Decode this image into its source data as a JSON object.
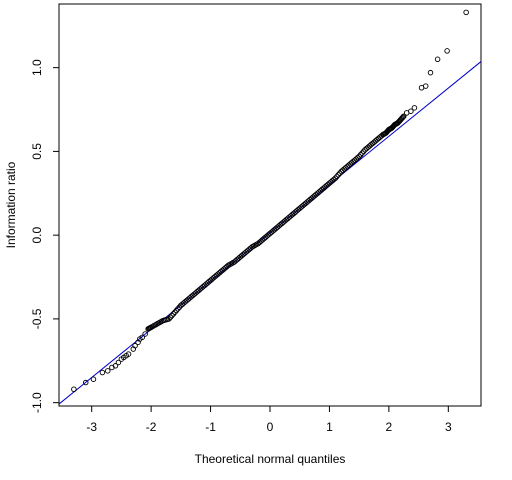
{
  "chart_data": {
    "type": "scatter",
    "title": "",
    "xlabel": "Theoretical normal quantiles",
    "ylabel": "Information ratio",
    "xlim": [
      -3.55,
      3.55
    ],
    "ylim": [
      -1.02,
      1.38
    ],
    "x_ticks": [
      -3,
      -2,
      -1,
      0,
      1,
      2,
      3
    ],
    "y_ticks": [
      -1.0,
      -0.5,
      0.0,
      0.5,
      1.0
    ],
    "x_tick_labels": [
      "-3",
      "-2",
      "-1",
      "0",
      "1",
      "2",
      "3"
    ],
    "y_tick_labels": [
      "-1.0",
      "-0.5",
      "0.0",
      "0.5",
      "1.0"
    ],
    "grid": false,
    "legend": "none",
    "point_color": "#000000",
    "reference_line": {
      "color": "#0000cc",
      "slope": 0.288,
      "intercept": 0.014
    },
    "points": {
      "x": [
        -3.3,
        -3.1,
        -2.97,
        -2.82,
        -2.73,
        -2.66,
        -2.6,
        -2.55,
        -2.5,
        -2.46,
        -2.42,
        -2.38,
        -2.3,
        -2.27,
        -2.22,
        -2.19,
        -2.15,
        -2.1,
        -2.05,
        -2.0,
        -1.9,
        -1.8,
        -1.7,
        -1.6,
        -1.5,
        -1.4,
        -1.3,
        -1.2,
        -1.1,
        -1.0,
        -0.9,
        -0.8,
        -0.7,
        -0.6,
        -0.5,
        -0.4,
        -0.3,
        -0.2,
        -0.1,
        0.0,
        0.1,
        0.2,
        0.3,
        0.4,
        0.5,
        0.6,
        0.7,
        0.8,
        0.9,
        1.0,
        1.1,
        1.2,
        1.3,
        1.4,
        1.5,
        1.6,
        1.7,
        1.8,
        1.9,
        1.95,
        2.0,
        2.05,
        2.1,
        2.15,
        2.2,
        2.25,
        2.3,
        2.37,
        2.43,
        2.55,
        2.62,
        2.7,
        2.82,
        2.98,
        3.3
      ],
      "y": [
        -0.92,
        -0.88,
        -0.86,
        -0.82,
        -0.81,
        -0.79,
        -0.78,
        -0.76,
        -0.74,
        -0.73,
        -0.72,
        -0.71,
        -0.68,
        -0.66,
        -0.64,
        -0.62,
        -0.61,
        -0.59,
        -0.56,
        -0.55,
        -0.53,
        -0.51,
        -0.5,
        -0.46,
        -0.42,
        -0.39,
        -0.36,
        -0.33,
        -0.3,
        -0.27,
        -0.24,
        -0.21,
        -0.18,
        -0.16,
        -0.13,
        -0.1,
        -0.07,
        -0.05,
        -0.02,
        0.01,
        0.04,
        0.07,
        0.1,
        0.13,
        0.16,
        0.19,
        0.22,
        0.25,
        0.28,
        0.31,
        0.34,
        0.38,
        0.41,
        0.44,
        0.47,
        0.51,
        0.54,
        0.57,
        0.6,
        0.61,
        0.63,
        0.64,
        0.66,
        0.67,
        0.69,
        0.71,
        0.73,
        0.74,
        0.76,
        0.88,
        0.89,
        0.97,
        1.05,
        1.1,
        1.33
      ]
    }
  }
}
